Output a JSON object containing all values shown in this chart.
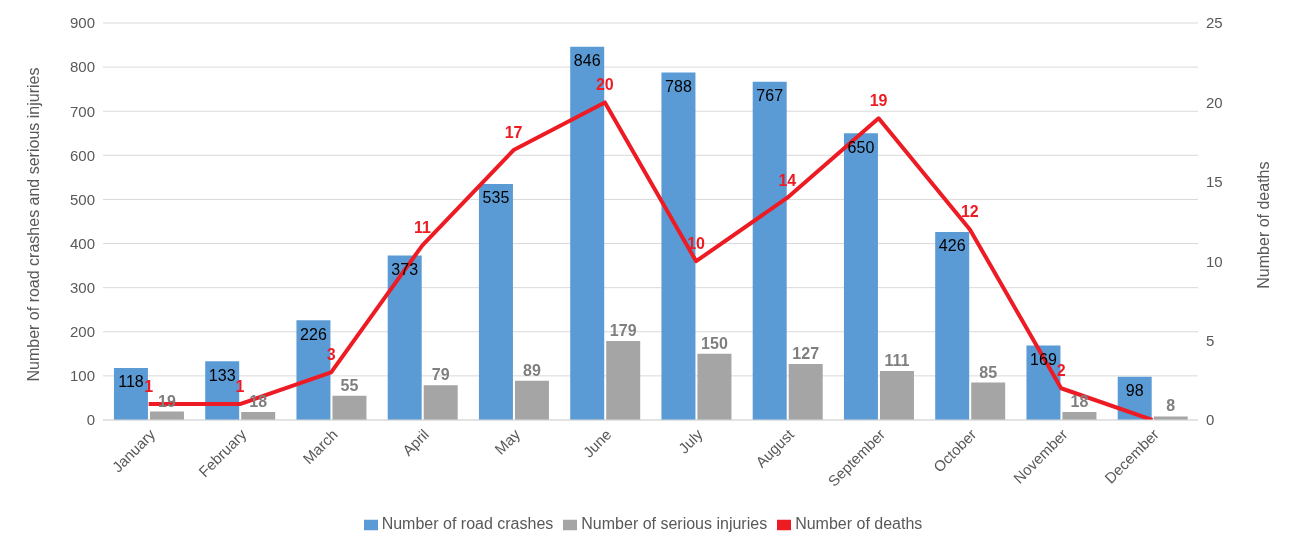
{
  "chart_data": {
    "type": "bar",
    "ylabel": "Number of road crashes and serious injuries",
    "y2label": "Number of deaths",
    "categories": [
      "January",
      "February",
      "March",
      "April",
      "May",
      "June",
      "July",
      "August",
      "September",
      "October",
      "November",
      "December"
    ],
    "series": [
      {
        "name": "Number of road crashes",
        "color": "#5b9bd5",
        "values": [
          118,
          133,
          226,
          373,
          535,
          846,
          788,
          767,
          650,
          426,
          169,
          98
        ],
        "value_labels": [
          "118",
          "133",
          "226",
          "373",
          "535",
          "846",
          "788",
          "767",
          "650",
          "426",
          "169",
          "98"
        ]
      },
      {
        "name": "Number of serious injuries",
        "color": "#a5a5a5",
        "values": [
          19,
          18,
          55,
          79,
          89,
          179,
          150,
          127,
          111,
          85,
          18,
          8
        ],
        "value_labels": [
          "19",
          "18",
          "55",
          "79",
          "89",
          "179",
          "150",
          "127",
          "111",
          "85",
          "18",
          "8"
        ]
      },
      {
        "name": "Number of deaths",
        "type": "line",
        "axis": "y2",
        "color": "#ed1c24",
        "values": [
          1,
          1,
          3,
          11,
          17,
          20,
          10,
          14,
          19,
          12,
          2,
          0
        ],
        "value_labels": [
          "1",
          "1",
          "3",
          "11",
          "17",
          "20",
          "10",
          "14",
          "19",
          "12",
          "2",
          null
        ]
      }
    ],
    "ylim": [
      0,
      900
    ],
    "yticks": [
      0,
      100,
      200,
      300,
      400,
      500,
      600,
      700,
      800,
      900
    ],
    "y2lim": [
      0,
      25
    ],
    "y2ticks": [
      0,
      5,
      10,
      15,
      20,
      25
    ],
    "grid": "y",
    "legend": "bottom",
    "marker": "none"
  }
}
